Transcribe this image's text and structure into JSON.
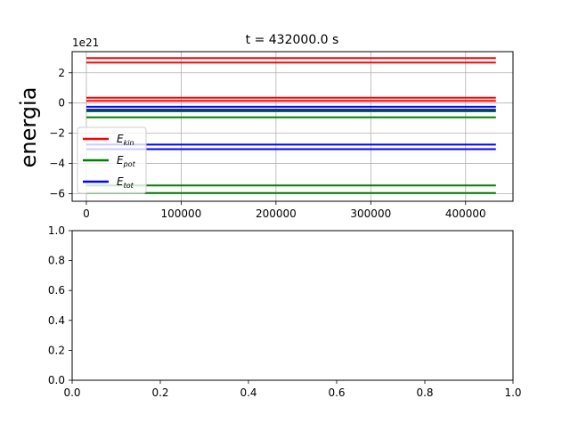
{
  "chart_data": [
    {
      "type": "line",
      "title": "t = 432000.0 s",
      "ylabel": "energia",
      "xlabel": "",
      "y_multiplier": "1e21",
      "xlim": [
        -15000,
        450000
      ],
      "ylim": [
        -6.5,
        3.4
      ],
      "x_ticks": [
        0,
        100000,
        200000,
        300000,
        400000
      ],
      "x_tick_labels": [
        "0",
        "100000",
        "200000",
        "300000",
        "400000"
      ],
      "y_ticks": [
        -6,
        -4,
        -2,
        0,
        2
      ],
      "y_tick_labels": [
        "−6",
        "−4",
        "−2",
        "0",
        "2"
      ],
      "grid": true,
      "legend_position": "center-left",
      "x": [
        0,
        432000
      ],
      "series": [
        {
          "name": "E_kin",
          "label_main": "E",
          "label_sub": "kin",
          "color": "#ff0000",
          "lines": [
            [
              2.97,
              2.97
            ],
            [
              2.68,
              2.68
            ],
            [
              0.35,
              0.35
            ],
            [
              0.15,
              0.15
            ]
          ]
        },
        {
          "name": "E_pot",
          "label_main": "E",
          "label_sub": "pot",
          "color": "#008000",
          "lines": [
            [
              -0.55,
              -0.55
            ],
            [
              -0.95,
              -0.95
            ],
            [
              -5.45,
              -5.45
            ],
            [
              -5.95,
              -5.95
            ]
          ]
        },
        {
          "name": "E_tot",
          "label_main": "E",
          "label_sub": "tot",
          "color": "#0000ff",
          "lines": [
            [
              -0.25,
              -0.25
            ],
            [
              -0.45,
              -0.45
            ],
            [
              -2.75,
              -2.75
            ],
            [
              -3.05,
              -3.05
            ]
          ]
        }
      ]
    },
    {
      "type": "line",
      "title": "",
      "xlabel": "",
      "ylabel": "",
      "xlim": [
        0,
        1
      ],
      "ylim": [
        0,
        1
      ],
      "x_ticks": [
        0,
        0.2,
        0.4,
        0.6,
        0.8,
        1
      ],
      "x_tick_labels": [
        "0.0",
        "0.2",
        "0.4",
        "0.6",
        "0.8",
        "1.0"
      ],
      "y_ticks": [
        0,
        0.2,
        0.4,
        0.6,
        0.8,
        1
      ],
      "y_tick_labels": [
        "0.0",
        "0.2",
        "0.4",
        "0.6",
        "0.8",
        "1.0"
      ],
      "grid": false,
      "series": []
    }
  ]
}
